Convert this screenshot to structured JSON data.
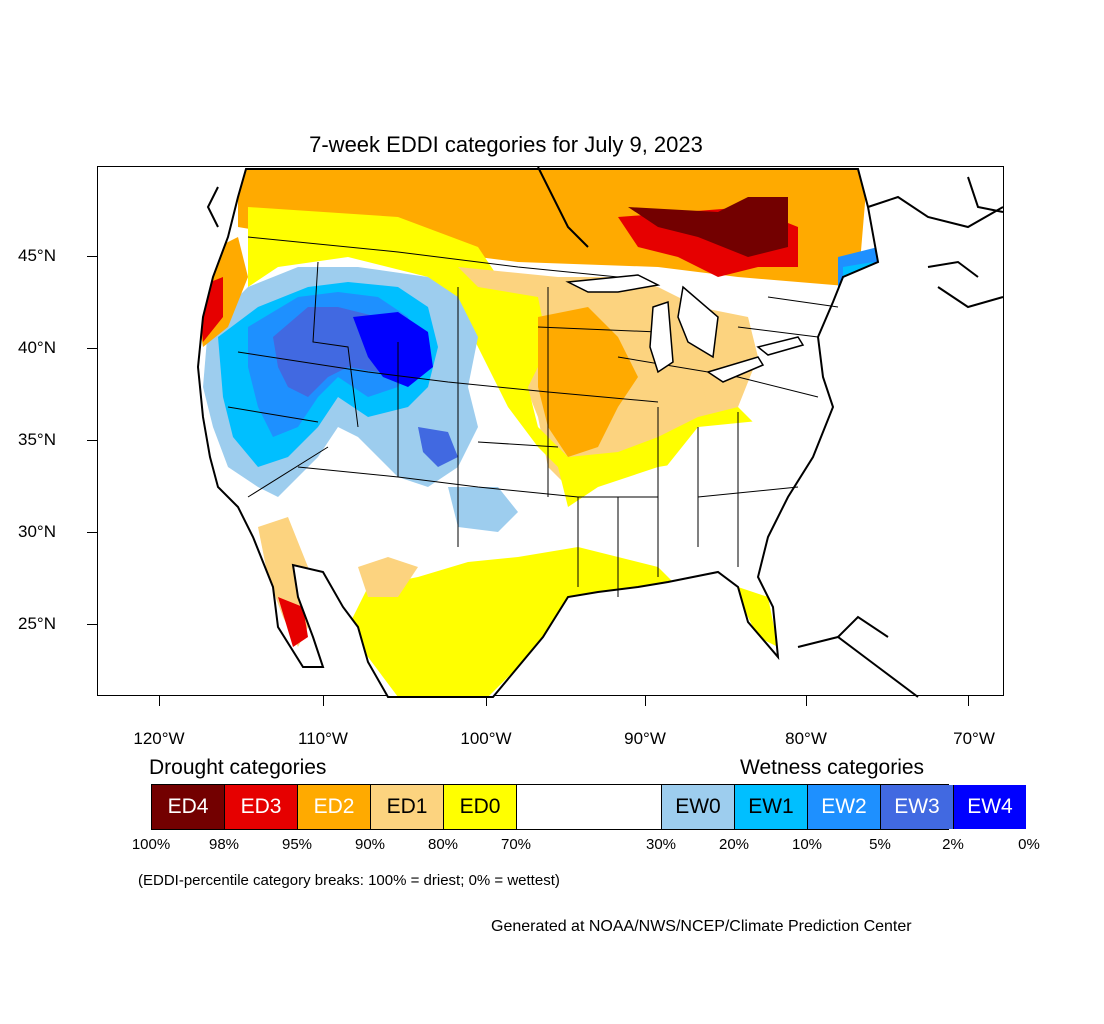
{
  "title": "7-week EDDI categories for July 9, 2023",
  "lat_labels": [
    "45°N",
    "40°N",
    "35°N",
    "30°N",
    "25°N"
  ],
  "lon_labels": [
    "120°W",
    "110°W",
    "100°W",
    "90°W",
    "80°W",
    "70°W"
  ],
  "legend": {
    "drought_heading": "Drought categories",
    "wetness_heading": "Wetness categories",
    "categories": [
      {
        "label": "ED4",
        "color": "#730000",
        "text_color": "#ffffff"
      },
      {
        "label": "ED3",
        "color": "#e60000",
        "text_color": "#ffffff"
      },
      {
        "label": "ED2",
        "color": "#ffaa00",
        "text_color": "#ffffff"
      },
      {
        "label": "ED1",
        "color": "#fcd37f",
        "text_color": "#000000"
      },
      {
        "label": "ED0",
        "color": "#ffff00",
        "text_color": "#000000"
      },
      {
        "label": "",
        "color": "#ffffff",
        "text_color": "#000000"
      },
      {
        "label": "EW0",
        "color": "#9dcdee",
        "text_color": "#000000"
      },
      {
        "label": "EW1",
        "color": "#00bfff",
        "text_color": "#000000"
      },
      {
        "label": "EW2",
        "color": "#1e90ff",
        "text_color": "#ffffff"
      },
      {
        "label": "EW3",
        "color": "#4169e1",
        "text_color": "#ffffff"
      },
      {
        "label": "EW4",
        "color": "#0000ff",
        "text_color": "#ffffff"
      }
    ],
    "breaks": [
      "100%",
      "98%",
      "95%",
      "90%",
      "80%",
      "70%",
      "30%",
      "20%",
      "10%",
      "5%",
      "2%",
      "0%"
    ]
  },
  "note": "(EDDI-percentile category breaks: 100% = driest; 0% = wettest)",
  "credit": "Generated at NOAA/NWS/NCEP/Climate Prediction Center"
}
